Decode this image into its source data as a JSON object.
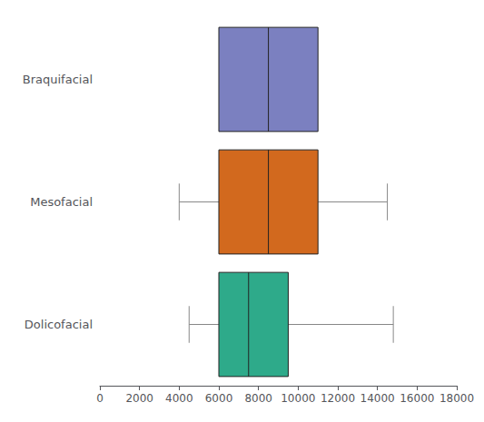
{
  "chart_data": {
    "type": "boxplot",
    "orientation": "horizontal",
    "categories": [
      "Braquifacial",
      "Mesofacial",
      "Dolicofacial"
    ],
    "boxes": [
      {
        "q1": 6000,
        "median": 8500,
        "q3": 11000,
        "whisker_low": null,
        "whisker_high": null
      },
      {
        "q1": 6000,
        "median": 8500,
        "q3": 11000,
        "whisker_low": 4000,
        "whisker_high": 14500
      },
      {
        "q1": 6000,
        "median": 7500,
        "q3": 9500,
        "whisker_low": 4500,
        "whisker_high": 14800
      }
    ],
    "colors": [
      "#7B80C0",
      "#D2691E",
      "#2EAA8A"
    ],
    "xlim": [
      0,
      18000
    ],
    "xticks": [
      0,
      2000,
      4000,
      6000,
      8000,
      10000,
      12000,
      14000,
      16000,
      18000
    ],
    "grid": false
  }
}
